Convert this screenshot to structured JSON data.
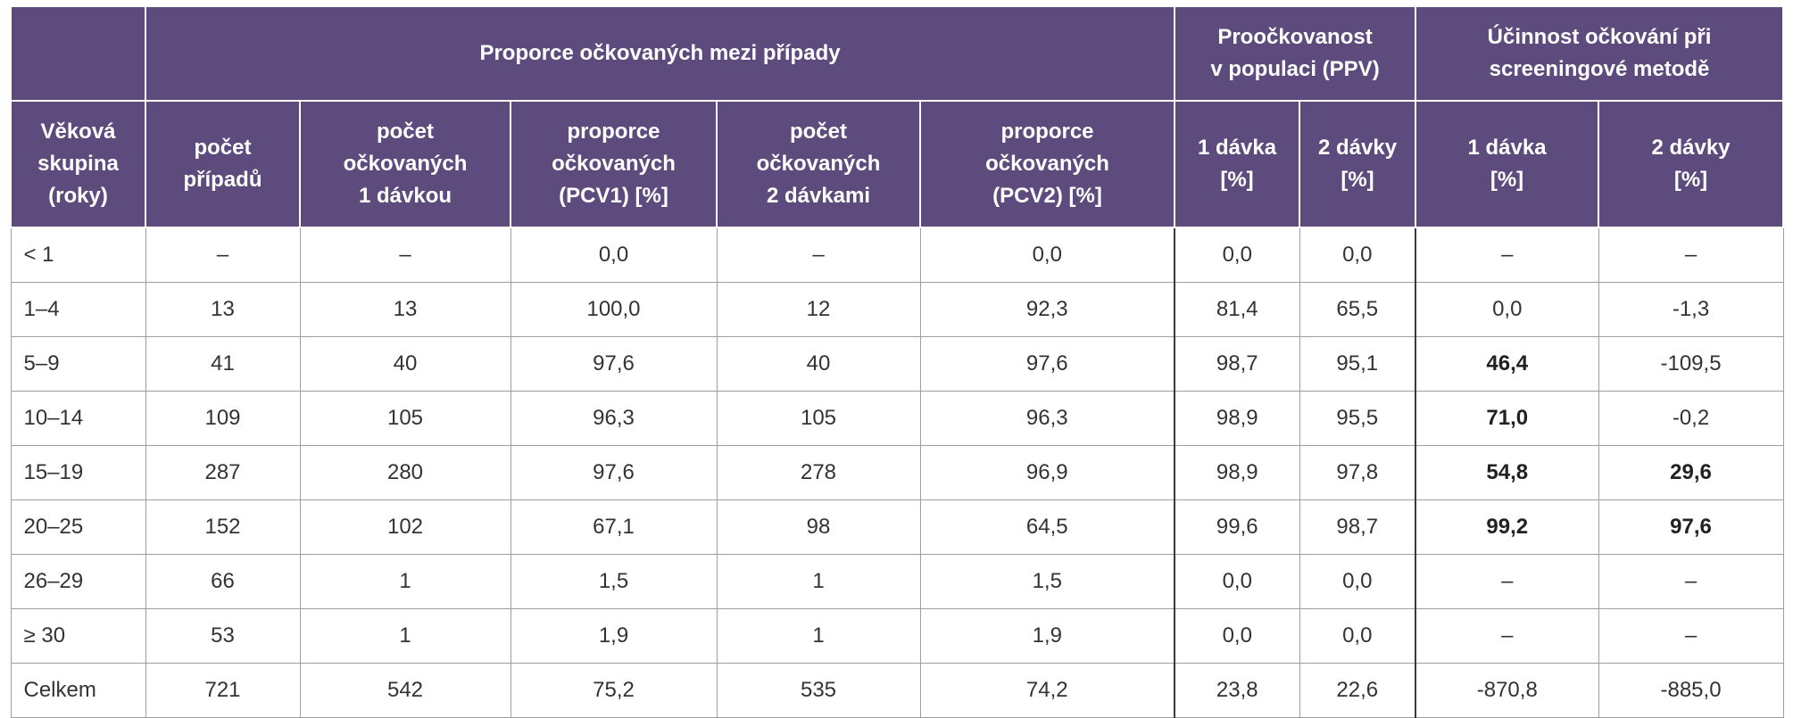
{
  "header": {
    "group_proportion": "Proporce očkovaných mezi případy",
    "group_coverage": "Proočkovanost\nv populaci (PPV)",
    "group_efficacy": "Účinnost očkování při\nscreeningové metodě",
    "age_group": "Věková\nskupina\n(roky)",
    "cases": "počet\npřípadů",
    "vacc_1": "počet\nočkovaných\n1 dávkou",
    "prop_1": "proporce\nočkovaných\n(PCV1) [%]",
    "vacc_2": "počet\nočkovaných\n2 dávkami",
    "prop_2": "proporce\nočkovaných\n(PCV2) [%]",
    "cov_1": "1 dávka\n[%]",
    "cov_2": "2 dávky\n[%]",
    "eff_1": "1 dávka\n[%]",
    "eff_2": "2 dávky\n[%]"
  },
  "rows": [
    {
      "age": "< 1",
      "cases": "–",
      "vacc1": "–",
      "pcv1": "0,0",
      "vacc2": "–",
      "pcv2": "0,0",
      "ppv1": "0,0",
      "ppv2": "0,0",
      "eff1": "–",
      "eff2": "–"
    },
    {
      "age": "1–4",
      "cases": "13",
      "vacc1": "13",
      "pcv1": "100,0",
      "vacc2": "12",
      "pcv2": "92,3",
      "ppv1": "81,4",
      "ppv2": "65,5",
      "eff1": "0,0",
      "eff2": "-1,3"
    },
    {
      "age": "5–9",
      "cases": "41",
      "vacc1": "40",
      "pcv1": "97,6",
      "vacc2": "40",
      "pcv2": "97,6",
      "ppv1": "98,7",
      "ppv2": "95,1",
      "eff1": "46,4",
      "eff2": "-109,5"
    },
    {
      "age": "10–14",
      "cases": "109",
      "vacc1": "105",
      "pcv1": "96,3",
      "vacc2": "105",
      "pcv2": "96,3",
      "ppv1": "98,9",
      "ppv2": "95,5",
      "eff1": "71,0",
      "eff2": "-0,2"
    },
    {
      "age": "15–19",
      "cases": "287",
      "vacc1": "280",
      "pcv1": "97,6",
      "vacc2": "278",
      "pcv2": "96,9",
      "ppv1": "98,9",
      "ppv2": "97,8",
      "eff1": "54,8",
      "eff2": "29,6"
    },
    {
      "age": "20–25",
      "cases": "152",
      "vacc1": "102",
      "pcv1": "67,1",
      "vacc2": "98",
      "pcv2": "64,5",
      "ppv1": "99,6",
      "ppv2": "98,7",
      "eff1": "99,2",
      "eff2": "97,6"
    },
    {
      "age": "26–29",
      "cases": "66",
      "vacc1": "1",
      "pcv1": "1,5",
      "vacc2": "1",
      "pcv2": "1,5",
      "ppv1": "0,0",
      "ppv2": "0,0",
      "eff1": "–",
      "eff2": "–"
    },
    {
      "age": "≥ 30",
      "cases": "53",
      "vacc1": "1",
      "pcv1": "1,9",
      "vacc2": "1",
      "pcv2": "1,9",
      "ppv1": "0,0",
      "ppv2": "0,0",
      "eff1": "–",
      "eff2": "–"
    },
    {
      "age": "Celkem",
      "cases": "721",
      "vacc1": "542",
      "pcv1": "75,2",
      "vacc2": "535",
      "pcv2": "74,2",
      "ppv1": "23,8",
      "ppv2": "22,6",
      "eff1": "-870,8",
      "eff2": "-885,0"
    }
  ]
}
